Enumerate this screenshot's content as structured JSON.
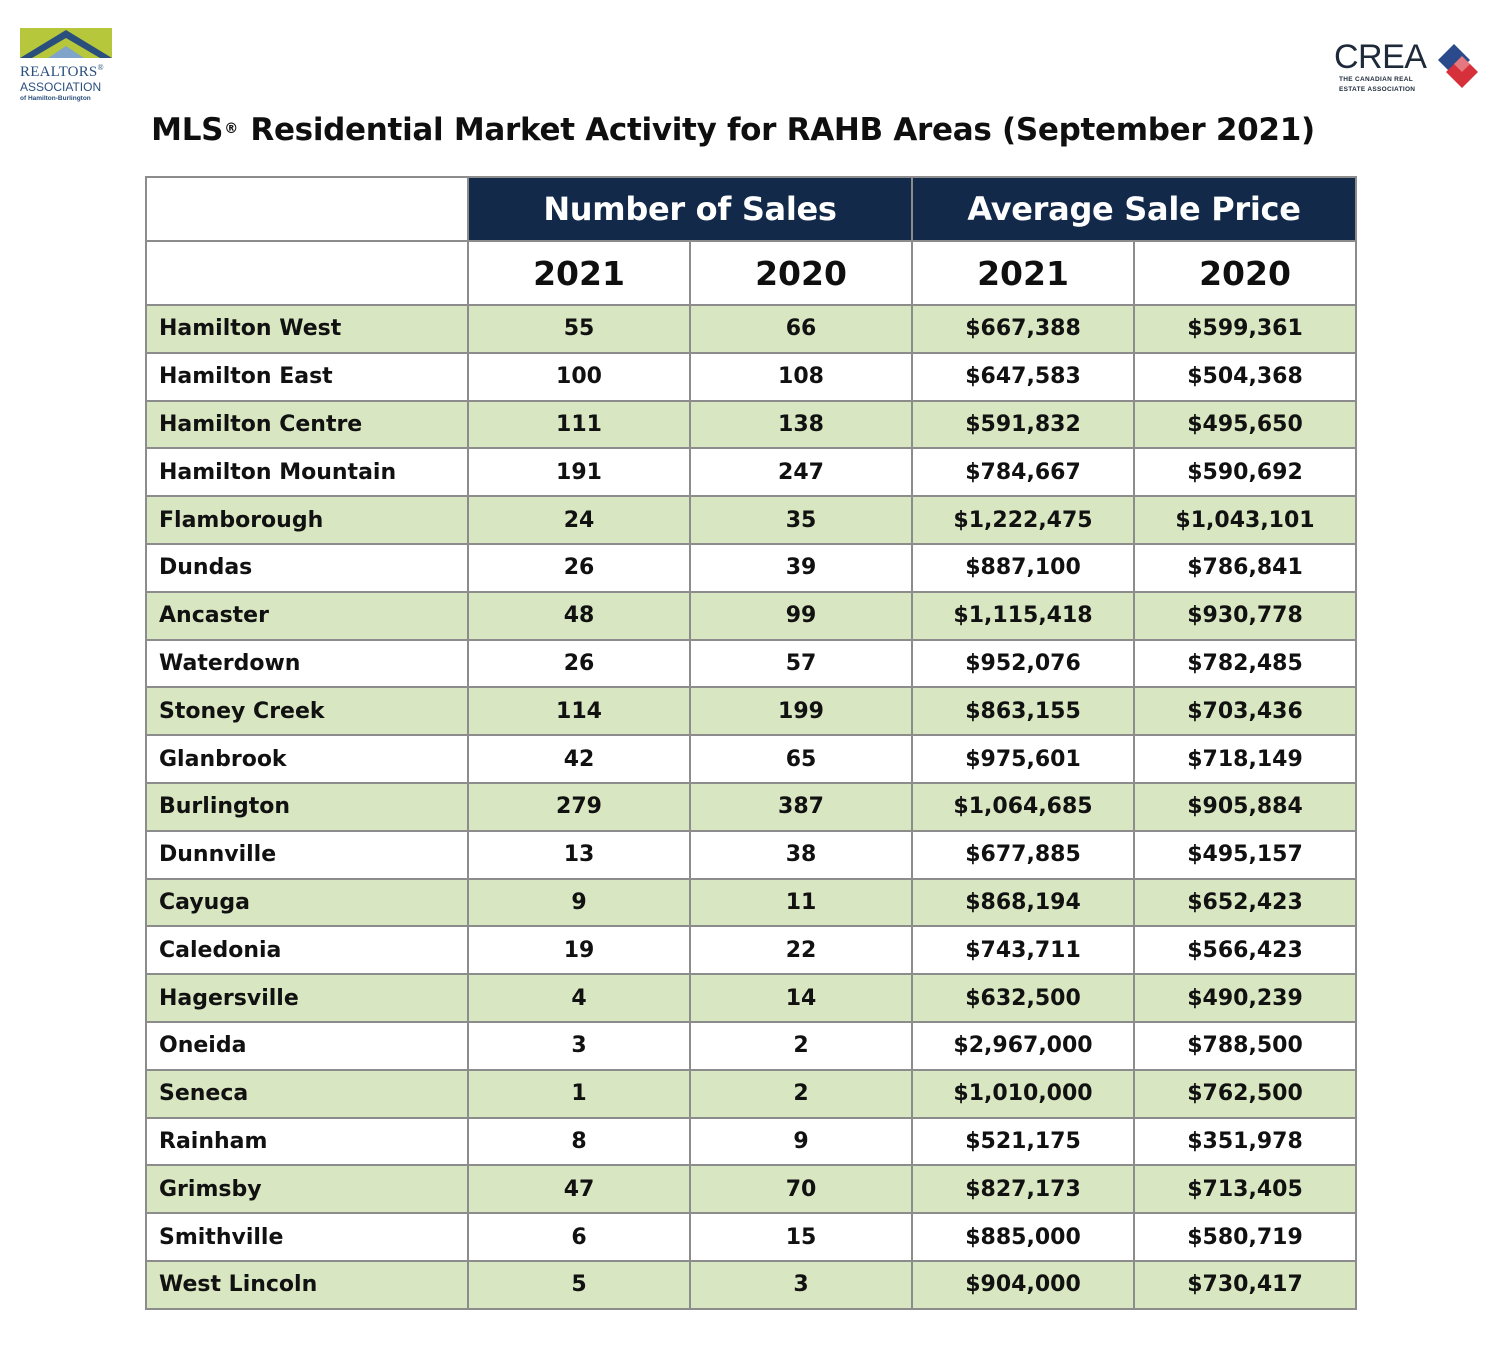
{
  "logos": {
    "left": {
      "name": "REALTORS",
      "reg_mark": "®",
      "line2": "ASSOCIATION",
      "line3": "of Hamilton-Burlington",
      "colors": {
        "green": "#b7c73b",
        "blue": "#2b4f7c"
      }
    },
    "right": {
      "wordmark": "CREA",
      "line1": "THE CANADIAN REAL",
      "line2": "ESTATE ASSOCIATION",
      "colors": {
        "navy": "#1e2a3a",
        "red": "#d6303a",
        "blue": "#2b4a8c"
      }
    }
  },
  "title": {
    "prefix": "MLS",
    "reg_mark": "®",
    "text": "Residential Market Activity for RAHB Areas (September 2021)"
  },
  "table": {
    "group_headers": [
      "Number of Sales",
      "Average Sale Price"
    ],
    "year_headers": [
      "2021",
      "2020",
      "2021",
      "2020"
    ],
    "rows": [
      {
        "area": "Hamilton West",
        "sales_2021": "55",
        "sales_2020": "66",
        "price_2021": "$667,388",
        "price_2020": "$599,361"
      },
      {
        "area": "Hamilton East",
        "sales_2021": "100",
        "sales_2020": "108",
        "price_2021": "$647,583",
        "price_2020": "$504,368"
      },
      {
        "area": "Hamilton Centre",
        "sales_2021": "111",
        "sales_2020": "138",
        "price_2021": "$591,832",
        "price_2020": "$495,650"
      },
      {
        "area": "Hamilton Mountain",
        "sales_2021": "191",
        "sales_2020": "247",
        "price_2021": "$784,667",
        "price_2020": "$590,692"
      },
      {
        "area": "Flamborough",
        "sales_2021": "24",
        "sales_2020": "35",
        "price_2021": "$1,222,475",
        "price_2020": "$1,043,101"
      },
      {
        "area": "Dundas",
        "sales_2021": "26",
        "sales_2020": "39",
        "price_2021": "$887,100",
        "price_2020": "$786,841"
      },
      {
        "area": "Ancaster",
        "sales_2021": "48",
        "sales_2020": "99",
        "price_2021": "$1,115,418",
        "price_2020": "$930,778"
      },
      {
        "area": "Waterdown",
        "sales_2021": "26",
        "sales_2020": "57",
        "price_2021": "$952,076",
        "price_2020": "$782,485"
      },
      {
        "area": "Stoney Creek",
        "sales_2021": "114",
        "sales_2020": "199",
        "price_2021": "$863,155",
        "price_2020": "$703,436"
      },
      {
        "area": "Glanbrook",
        "sales_2021": "42",
        "sales_2020": "65",
        "price_2021": "$975,601",
        "price_2020": "$718,149"
      },
      {
        "area": "Burlington",
        "sales_2021": "279",
        "sales_2020": "387",
        "price_2021": "$1,064,685",
        "price_2020": "$905,884"
      },
      {
        "area": "Dunnville",
        "sales_2021": "13",
        "sales_2020": "38",
        "price_2021": "$677,885",
        "price_2020": "$495,157"
      },
      {
        "area": "Cayuga",
        "sales_2021": "9",
        "sales_2020": "11",
        "price_2021": "$868,194",
        "price_2020": "$652,423"
      },
      {
        "area": "Caledonia",
        "sales_2021": "19",
        "sales_2020": "22",
        "price_2021": "$743,711",
        "price_2020": "$566,423"
      },
      {
        "area": "Hagersville",
        "sales_2021": "4",
        "sales_2020": "14",
        "price_2021": "$632,500",
        "price_2020": "$490,239"
      },
      {
        "area": "Oneida",
        "sales_2021": "3",
        "sales_2020": "2",
        "price_2021": "$2,967,000",
        "price_2020": "$788,500"
      },
      {
        "area": "Seneca",
        "sales_2021": "1",
        "sales_2020": "2",
        "price_2021": "$1,010,000",
        "price_2020": "$762,500"
      },
      {
        "area": "Rainham",
        "sales_2021": "8",
        "sales_2020": "9",
        "price_2021": "$521,175",
        "price_2020": "$351,978"
      },
      {
        "area": "Grimsby",
        "sales_2021": "47",
        "sales_2020": "70",
        "price_2021": "$827,173",
        "price_2020": "$713,405"
      },
      {
        "area": "Smithville",
        "sales_2021": "6",
        "sales_2020": "15",
        "price_2021": "$885,000",
        "price_2020": "$580,719"
      },
      {
        "area": "West Lincoln",
        "sales_2021": "5",
        "sales_2020": "3",
        "price_2021": "$904,000",
        "price_2020": "$730,417"
      }
    ],
    "colors": {
      "header_bg": "#12294a",
      "header_text": "#ffffff",
      "stripe_green": "#d8e6c1",
      "stripe_white": "#ffffff",
      "border": "#8c8c8c"
    }
  }
}
